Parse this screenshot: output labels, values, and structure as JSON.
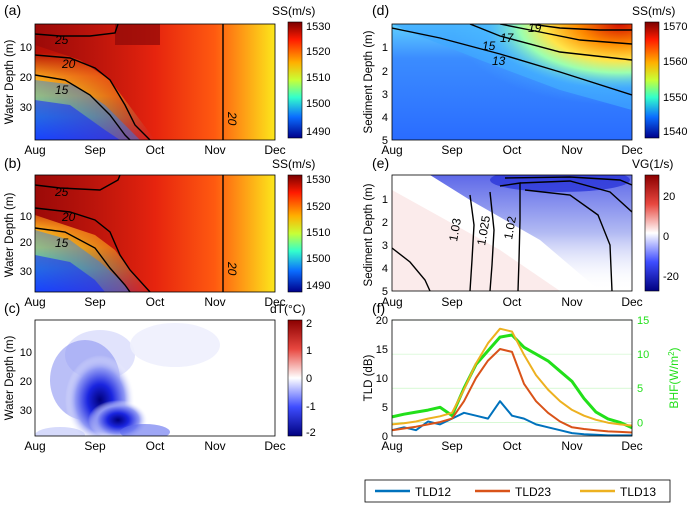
{
  "figure": {
    "x_ticks": [
      "Aug",
      "Sep",
      "Oct",
      "Nov",
      "Dec"
    ],
    "x_tick_values": [
      0,
      1,
      2,
      3,
      4
    ]
  },
  "panels": {
    "a": {
      "label": "(a)",
      "ylabel": "Water Depth (m)",
      "colorbar_title": "SS(m/s)",
      "colorbar_ticks": [
        "1530",
        "1520",
        "1510",
        "1500",
        "1490"
      ],
      "contour_labels": [
        "25",
        "20",
        "15",
        "20"
      ]
    },
    "b": {
      "label": "(b)",
      "ylabel": "Water Depth (m)",
      "colorbar_title": "SS(m/s)",
      "colorbar_ticks": [
        "1530",
        "1520",
        "1510",
        "1500",
        "1490"
      ],
      "contour_labels": [
        "25",
        "20",
        "15",
        "20"
      ]
    },
    "c": {
      "label": "(c)",
      "ylabel": "Water Depth (m)",
      "colorbar_title": "dT(°C)",
      "colorbar_ticks": [
        "2",
        "1",
        "0",
        "-1",
        "-2"
      ]
    },
    "d": {
      "label": "(d)",
      "ylabel": "Sediment Depth (m)",
      "colorbar_title": "SS(m/s)",
      "colorbar_ticks": [
        "1570",
        "1560",
        "1550",
        "1540"
      ],
      "contour_labels": [
        "19",
        "17",
        "15",
        "13"
      ]
    },
    "e": {
      "label": "(e)",
      "ylabel": "Sediment Depth (m)",
      "colorbar_title": "VG(1/s)",
      "colorbar_ticks": [
        "20",
        "0",
        "-20"
      ],
      "contour_labels": [
        "1.03",
        "1.025",
        "1.02"
      ]
    },
    "f": {
      "label": "(f)",
      "ylabel_left": "TLD (dB)",
      "ylabel_right_base": "BHF(W/m",
      "ylabel_right_sup": "2",
      "ylabel_right_end": ")"
    }
  },
  "colors": {
    "tld12": "#0072BD",
    "tld23": "#D95319",
    "tld13": "#EDB120",
    "bhf": "#22E01A"
  },
  "chart_data": [
    {
      "panel": "a",
      "type": "heatmap",
      "ylabel": "Water Depth (m)",
      "y_ticks": [
        10,
        20,
        30
      ],
      "colorbar_range": [
        1490,
        1530
      ],
      "contour_levels": [
        25,
        20,
        15,
        20
      ]
    },
    {
      "panel": "b",
      "type": "heatmap",
      "ylabel": "Water Depth (m)",
      "y_ticks": [
        10,
        20,
        30
      ],
      "colorbar_range": [
        1490,
        1530
      ],
      "contour_levels": [
        25,
        20,
        15,
        20
      ]
    },
    {
      "panel": "c",
      "type": "heatmap",
      "ylabel": "Water Depth (m)",
      "y_ticks": [
        10,
        20,
        30
      ],
      "colorbar_range": [
        -2,
        2
      ]
    },
    {
      "panel": "d",
      "type": "heatmap",
      "ylabel": "Sediment Depth (m)",
      "y_ticks": [
        1,
        2,
        3,
        4,
        5
      ],
      "colorbar_range": [
        1540,
        1570
      ],
      "contour_levels": [
        19,
        17,
        15,
        13
      ]
    },
    {
      "panel": "e",
      "type": "heatmap",
      "ylabel": "Sediment Depth (m)",
      "y_ticks": [
        1,
        2,
        3,
        4,
        5
      ],
      "colorbar_range": [
        -20,
        20
      ],
      "contour_levels": [
        1.03,
        1.025,
        1.02
      ]
    },
    {
      "panel": "f",
      "type": "line",
      "x": [
        0,
        0.2,
        0.4,
        0.6,
        0.8,
        1.0,
        1.2,
        1.4,
        1.6,
        1.8,
        2.0,
        2.2,
        2.4,
        2.6,
        2.8,
        3.0,
        3.2,
        3.4,
        3.6,
        3.8,
        4.0
      ],
      "ylabel_left": "TLD (dB)",
      "ylim_left": [
        0,
        20
      ],
      "yticks_left": [
        0,
        5,
        10,
        15,
        20
      ],
      "ylabel_right": "BHF(W/m2)",
      "ylim_right": [
        -2,
        15
      ],
      "yticks_right": [
        0,
        5,
        10,
        15
      ],
      "series": [
        {
          "name": "TLD12",
          "color": "#0072BD",
          "axis": "left",
          "values": [
            1.0,
            1.5,
            1.0,
            2.5,
            2.0,
            3.0,
            4.0,
            3.5,
            3.0,
            6.0,
            3.5,
            3.0,
            2.0,
            1.5,
            1.0,
            0.5,
            0.3,
            0.2,
            0.1,
            0.1,
            0.1
          ]
        },
        {
          "name": "TLD23",
          "color": "#D95319",
          "axis": "left",
          "values": [
            1.0,
            1.3,
            1.6,
            2.0,
            2.4,
            3.0,
            6.0,
            10.0,
            13.0,
            15.0,
            14.5,
            9.0,
            6.0,
            4.0,
            2.5,
            1.5,
            1.2,
            1.0,
            0.8,
            0.7,
            0.6
          ]
        },
        {
          "name": "TLD13",
          "color": "#EDB120",
          "axis": "left",
          "values": [
            2.0,
            2.2,
            2.5,
            3.0,
            3.4,
            4.0,
            8.0,
            12.5,
            16.0,
            18.5,
            18.0,
            14.0,
            10.5,
            8.0,
            6.0,
            4.5,
            3.5,
            2.8,
            2.3,
            2.0,
            1.8
          ]
        },
        {
          "name": "BHF",
          "color": "#22E01A",
          "axis": "right",
          "values": [
            0.8,
            1.2,
            1.5,
            1.8,
            2.2,
            1.0,
            5.0,
            8.5,
            10.5,
            12.5,
            12.8,
            11.0,
            10.0,
            9.0,
            7.5,
            6.0,
            3.5,
            1.5,
            0.5,
            0.0,
            -0.8
          ]
        }
      ],
      "legend": [
        "TLD12",
        "TLD23",
        "TLD13"
      ]
    }
  ]
}
